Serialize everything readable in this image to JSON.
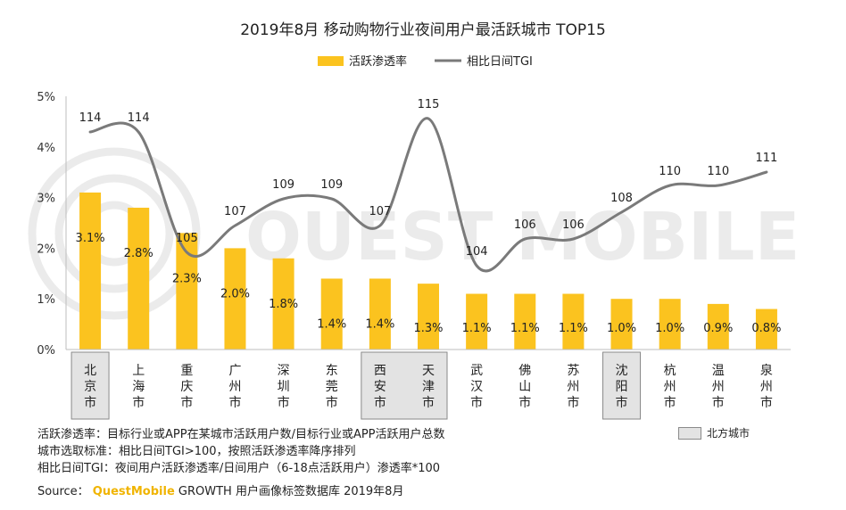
{
  "chart_data": {
    "type": "bar",
    "title": "2019年8月 移动购物行业夜间用户最活跃城市 TOP15",
    "categories": [
      "北京市",
      "上海市",
      "重庆市",
      "广州市",
      "深圳市",
      "东莞市",
      "西安市",
      "天津市",
      "武汉市",
      "佛山市",
      "苏州市",
      "沈阳市",
      "杭州市",
      "温州市",
      "泉州市"
    ],
    "series": [
      {
        "name": "活跃渗透率",
        "type": "bar",
        "color": "#FBC31F",
        "values": [
          3.1,
          2.8,
          2.3,
          2.0,
          1.8,
          1.4,
          1.4,
          1.3,
          1.1,
          1.1,
          1.1,
          1.0,
          1.0,
          0.9,
          0.8
        ],
        "labels": [
          "3.1%",
          "2.8%",
          "2.3%",
          "2.0%",
          "1.8%",
          "1.4%",
          "1.4%",
          "1.3%",
          "1.1%",
          "1.1%",
          "1.1%",
          "1.0%",
          "1.0%",
          "0.9%",
          "0.8%"
        ]
      },
      {
        "name": "相比日间TGI",
        "type": "line",
        "color": "#7a7a7a",
        "values": [
          114,
          114,
          105,
          107,
          109,
          109,
          107,
          115,
          104,
          106,
          106,
          108,
          110,
          110,
          111
        ],
        "labels": [
          "114",
          "114",
          "105",
          "107",
          "109",
          "109",
          "107",
          "115",
          "104",
          "106",
          "106",
          "108",
          "110",
          "110",
          "111"
        ]
      }
    ],
    "yticks": [
      "5%",
      "4%",
      "3%",
      "2%",
      "1%",
      "0%"
    ],
    "ylim": [
      0,
      5
    ],
    "north_cities": [
      "北京市",
      "西安市",
      "天津市",
      "沈阳市"
    ],
    "north_legend": "北方城市",
    "legend_position": "top-center",
    "grid": false
  },
  "notes": [
    "活跃渗透率：目标行业或APP在某城市活跃用户数/目标行业或APP活跃用户总数",
    "城市选取标准：相比日间TGI>100，按照活跃渗透率降序排列",
    "相比日间TGI：夜间用户活跃渗透率/日间用户（6-18点活跃用户）渗透率*100"
  ],
  "source": {
    "label": "Source：",
    "brand": "QuestMobile",
    "text": "GROWTH 用户画像标签数据库 2019年8月"
  },
  "watermark": "QUEST MOBILE"
}
